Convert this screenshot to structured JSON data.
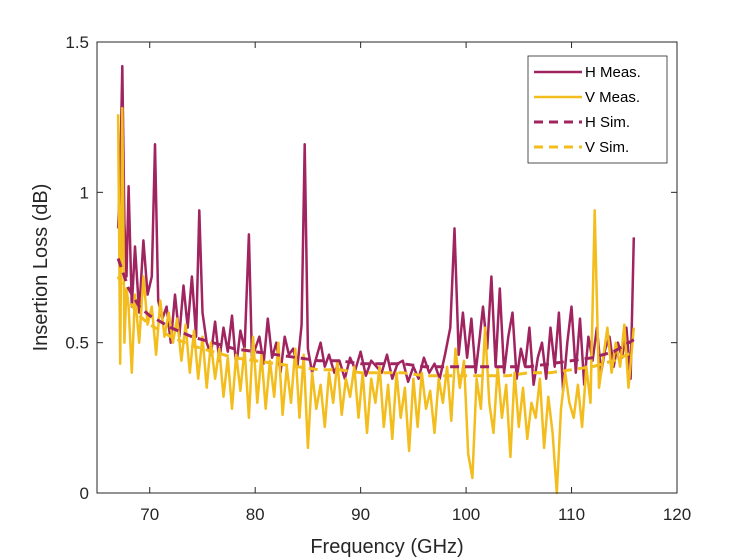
{
  "chart_data": {
    "type": "line",
    "title": "",
    "xlabel": "Frequency (GHz)",
    "ylabel": "Insertion Loss (dB)",
    "xlim": [
      65,
      120
    ],
    "ylim": [
      0,
      1.5
    ],
    "xticks": [
      70,
      80,
      90,
      100,
      110,
      120
    ],
    "xtick_labels": [
      "70",
      "80",
      "90",
      "100",
      "110",
      "120"
    ],
    "yticks": [
      0,
      0.5,
      1,
      1.5
    ],
    "ytick_labels": [
      "0",
      "0.5",
      "1",
      "1.5"
    ],
    "grid": false,
    "legend_position": "top-right",
    "series": [
      {
        "name": "H Meas.",
        "style": "solid",
        "color": "#A0245F",
        "x": [
          67.0,
          67.2,
          67.4,
          67.6,
          67.8,
          68.0,
          68.3,
          68.6,
          69.0,
          69.4,
          69.8,
          70.2,
          70.5,
          70.8,
          71.2,
          71.6,
          72.0,
          72.4,
          72.8,
          73.2,
          73.6,
          74.0,
          74.4,
          74.7,
          75.0,
          75.4,
          75.8,
          76.2,
          76.6,
          77.0,
          77.4,
          77.8,
          78.2,
          78.6,
          79.0,
          79.4,
          79.7,
          80.0,
          80.4,
          80.8,
          81.2,
          81.6,
          82.0,
          82.4,
          82.8,
          83.2,
          83.6,
          84.0,
          84.4,
          84.7,
          85.0,
          85.4,
          85.8,
          86.2,
          86.6,
          87.0,
          87.5,
          88.0,
          88.5,
          89.0,
          89.5,
          90.0,
          90.5,
          91.0,
          91.5,
          92.0,
          92.5,
          93.0,
          93.5,
          94.0,
          94.5,
          95.0,
          95.5,
          96.0,
          96.5,
          97.0,
          97.5,
          98.0,
          98.5,
          98.9,
          99.3,
          99.7,
          100.1,
          100.5,
          100.9,
          101.3,
          101.6,
          102.0,
          102.4,
          102.8,
          103.2,
          103.6,
          104.0,
          104.4,
          104.8,
          105.2,
          105.6,
          106.0,
          106.4,
          106.8,
          107.2,
          107.6,
          108.0,
          108.4,
          108.8,
          109.2,
          109.6,
          110.0,
          110.4,
          110.8,
          111.2,
          111.6,
          112.0,
          112.4,
          112.8,
          113.2,
          113.6,
          114.0,
          114.4,
          114.8,
          115.2,
          115.6,
          115.9
        ],
        "y": [
          0.88,
          1.05,
          1.42,
          0.9,
          0.72,
          1.02,
          0.62,
          0.82,
          0.6,
          0.84,
          0.66,
          0.72,
          1.16,
          0.64,
          0.58,
          0.62,
          0.5,
          0.66,
          0.52,
          0.69,
          0.55,
          0.72,
          0.52,
          0.94,
          0.6,
          0.5,
          0.46,
          0.57,
          0.44,
          0.55,
          0.47,
          0.59,
          0.42,
          0.54,
          0.48,
          0.86,
          0.44,
          0.48,
          0.52,
          0.43,
          0.58,
          0.45,
          0.5,
          0.4,
          0.52,
          0.46,
          0.48,
          0.42,
          0.56,
          1.16,
          0.48,
          0.4,
          0.45,
          0.5,
          0.42,
          0.46,
          0.4,
          0.44,
          0.38,
          0.45,
          0.41,
          0.47,
          0.39,
          0.44,
          0.42,
          0.4,
          0.46,
          0.38,
          0.43,
          0.44,
          0.37,
          0.42,
          0.38,
          0.45,
          0.4,
          0.43,
          0.38,
          0.46,
          0.55,
          0.88,
          0.46,
          0.6,
          0.45,
          0.58,
          0.4,
          0.52,
          0.62,
          0.48,
          0.72,
          0.42,
          0.68,
          0.4,
          0.52,
          0.6,
          0.38,
          0.48,
          0.42,
          0.55,
          0.36,
          0.45,
          0.5,
          0.38,
          0.55,
          0.42,
          0.6,
          0.34,
          0.5,
          0.62,
          0.4,
          0.58,
          0.36,
          0.52,
          0.44,
          0.55,
          0.4,
          0.48,
          0.52,
          0.42,
          0.5,
          0.45,
          0.55,
          0.38,
          0.85
        ]
      },
      {
        "name": "V Meas.",
        "style": "solid",
        "color": "#F2BD1D",
        "x": [
          67.0,
          67.2,
          67.4,
          67.6,
          67.8,
          68.0,
          68.3,
          68.6,
          69.0,
          69.4,
          69.8,
          70.2,
          70.6,
          71.0,
          71.4,
          71.8,
          72.2,
          72.6,
          73.0,
          73.4,
          73.8,
          74.2,
          74.6,
          75.0,
          75.4,
          75.8,
          76.2,
          76.6,
          77.0,
          77.4,
          77.8,
          78.2,
          78.6,
          79.0,
          79.4,
          79.8,
          80.2,
          80.6,
          81.0,
          81.4,
          81.8,
          82.2,
          82.6,
          83.0,
          83.4,
          83.8,
          84.2,
          84.6,
          85.0,
          85.4,
          85.8,
          86.2,
          86.6,
          87.0,
          87.4,
          87.8,
          88.2,
          88.6,
          89.0,
          89.4,
          89.8,
          90.2,
          90.6,
          91.0,
          91.4,
          91.8,
          92.2,
          92.6,
          93.0,
          93.4,
          93.8,
          94.2,
          94.6,
          95.0,
          95.4,
          95.8,
          96.2,
          96.6,
          97.0,
          97.4,
          97.8,
          98.2,
          98.6,
          99.0,
          99.4,
          99.8,
          100.2,
          100.6,
          101.0,
          101.4,
          101.8,
          102.2,
          102.6,
          103.0,
          103.4,
          103.8,
          104.2,
          104.6,
          105.0,
          105.4,
          105.8,
          106.2,
          106.6,
          107.0,
          107.4,
          107.8,
          108.2,
          108.6,
          109.0,
          109.4,
          109.8,
          110.2,
          110.6,
          111.0,
          111.4,
          111.8,
          112.2,
          112.6,
          113.0,
          113.4,
          113.8,
          114.2,
          114.6,
          115.0,
          115.4,
          115.9
        ],
        "y": [
          1.26,
          0.43,
          1.28,
          0.5,
          0.68,
          0.62,
          0.4,
          0.66,
          0.5,
          0.72,
          0.56,
          0.62,
          0.46,
          0.64,
          0.52,
          0.6,
          0.5,
          0.58,
          0.44,
          0.56,
          0.4,
          0.54,
          0.38,
          0.52,
          0.35,
          0.5,
          0.38,
          0.48,
          0.32,
          0.45,
          0.28,
          0.46,
          0.34,
          0.48,
          0.25,
          0.52,
          0.3,
          0.46,
          0.28,
          0.44,
          0.32,
          0.5,
          0.26,
          0.42,
          0.3,
          0.48,
          0.25,
          0.46,
          0.15,
          0.4,
          0.28,
          0.36,
          0.22,
          0.4,
          0.3,
          0.44,
          0.26,
          0.38,
          0.32,
          0.42,
          0.25,
          0.4,
          0.2,
          0.38,
          0.3,
          0.42,
          0.22,
          0.36,
          0.18,
          0.4,
          0.25,
          0.35,
          0.14,
          0.38,
          0.22,
          0.4,
          0.28,
          0.34,
          0.2,
          0.38,
          0.3,
          0.42,
          0.24,
          0.48,
          0.35,
          0.44,
          0.13,
          0.05,
          0.38,
          0.28,
          0.55,
          0.3,
          0.2,
          0.42,
          0.25,
          0.36,
          0.12,
          0.4,
          0.22,
          0.35,
          0.18,
          0.3,
          0.25,
          0.38,
          0.15,
          0.32,
          0.2,
          0.0,
          0.28,
          0.4,
          0.3,
          0.25,
          0.36,
          0.22,
          0.42,
          0.3,
          0.94,
          0.35,
          0.45,
          0.55,
          0.4,
          0.5,
          0.42,
          0.56,
          0.35,
          0.55
        ]
      },
      {
        "name": "H Sim.",
        "style": "dashed",
        "color": "#A0245F",
        "x": [
          67.0,
          68.0,
          69.0,
          70.0,
          72.0,
          74.0,
          76.0,
          78.0,
          80.0,
          82.0,
          84.0,
          86.0,
          88.0,
          90.0,
          92.0,
          94.0,
          96.0,
          98.0,
          100.0,
          102.0,
          104.0,
          106.0,
          108.0,
          110.0,
          112.0,
          114.0,
          115.9
        ],
        "y": [
          0.78,
          0.68,
          0.62,
          0.59,
          0.55,
          0.52,
          0.5,
          0.48,
          0.47,
          0.46,
          0.45,
          0.44,
          0.44,
          0.43,
          0.43,
          0.43,
          0.42,
          0.42,
          0.42,
          0.42,
          0.42,
          0.42,
          0.43,
          0.44,
          0.45,
          0.47,
          0.51
        ]
      },
      {
        "name": "V Sim.",
        "style": "dashed",
        "color": "#F2BD1D",
        "x": [
          67.0,
          68.0,
          69.0,
          70.0,
          72.0,
          74.0,
          76.0,
          78.0,
          80.0,
          82.0,
          84.0,
          86.0,
          88.0,
          90.0,
          92.0,
          94.0,
          96.0,
          98.0,
          100.0,
          102.0,
          104.0,
          106.0,
          108.0,
          110.0,
          112.0,
          114.0,
          115.9
        ],
        "y": [
          0.72,
          0.64,
          0.59,
          0.56,
          0.52,
          0.49,
          0.47,
          0.45,
          0.44,
          0.43,
          0.42,
          0.41,
          0.41,
          0.4,
          0.4,
          0.4,
          0.39,
          0.39,
          0.39,
          0.39,
          0.39,
          0.4,
          0.4,
          0.41,
          0.42,
          0.44,
          0.47
        ]
      }
    ]
  }
}
